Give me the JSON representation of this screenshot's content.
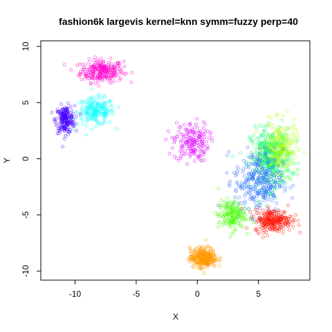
{
  "chart_data": {
    "type": "scatter",
    "title": "fashion6k largevis kernel=knn symm=fuzzy perp=40",
    "xlabel": "X",
    "ylabel": "Y",
    "xlim": [
      -12.8,
      9.2
    ],
    "ylim": [
      -10.8,
      10.5
    ],
    "xticks": [
      -10,
      -5,
      0,
      5
    ],
    "yticks": [
      -10,
      -5,
      0,
      5,
      10
    ],
    "xtick_labels": [
      "-10",
      "-5",
      "0",
      "5"
    ],
    "ytick_labels": [
      "-10",
      "-5",
      "0",
      "5",
      "10"
    ],
    "grid": false,
    "legend": "none",
    "marker": "open-circle",
    "clusters": [
      {
        "color": "#ff00cc",
        "center": [
          -7.8,
          7.8
        ],
        "spread": [
          1.6,
          0.9
        ],
        "count": 260
      },
      {
        "color": "#00ffff",
        "center": [
          -8.3,
          4.2
        ],
        "spread": [
          1.4,
          1.1
        ],
        "count": 200
      },
      {
        "color": "#4400ff",
        "center": [
          -10.8,
          3.5
        ],
        "spread": [
          0.7,
          1.1
        ],
        "count": 200
      },
      {
        "color": "#dd00ff",
        "center": [
          -0.5,
          1.5
        ],
        "spread": [
          1.3,
          1.6
        ],
        "count": 180
      },
      {
        "color": "#00ff66",
        "center": [
          6.0,
          0.0
        ],
        "spread": [
          1.5,
          2.4
        ],
        "count": 400
      },
      {
        "color": "#aaff00",
        "center": [
          6.8,
          1.0
        ],
        "spread": [
          1.2,
          2.0
        ],
        "count": 220
      },
      {
        "color": "#2266ff",
        "center": [
          5.0,
          -2.0
        ],
        "spread": [
          1.8,
          2.6
        ],
        "count": 300
      },
      {
        "color": "#ff1100",
        "center": [
          6.2,
          -5.5
        ],
        "spread": [
          1.4,
          0.9
        ],
        "count": 260
      },
      {
        "color": "#44ff00",
        "center": [
          2.8,
          -5.0
        ],
        "spread": [
          1.0,
          1.2
        ],
        "count": 180
      },
      {
        "color": "#ff9900",
        "center": [
          0.5,
          -8.8
        ],
        "spread": [
          1.0,
          0.8
        ],
        "count": 320
      }
    ]
  }
}
